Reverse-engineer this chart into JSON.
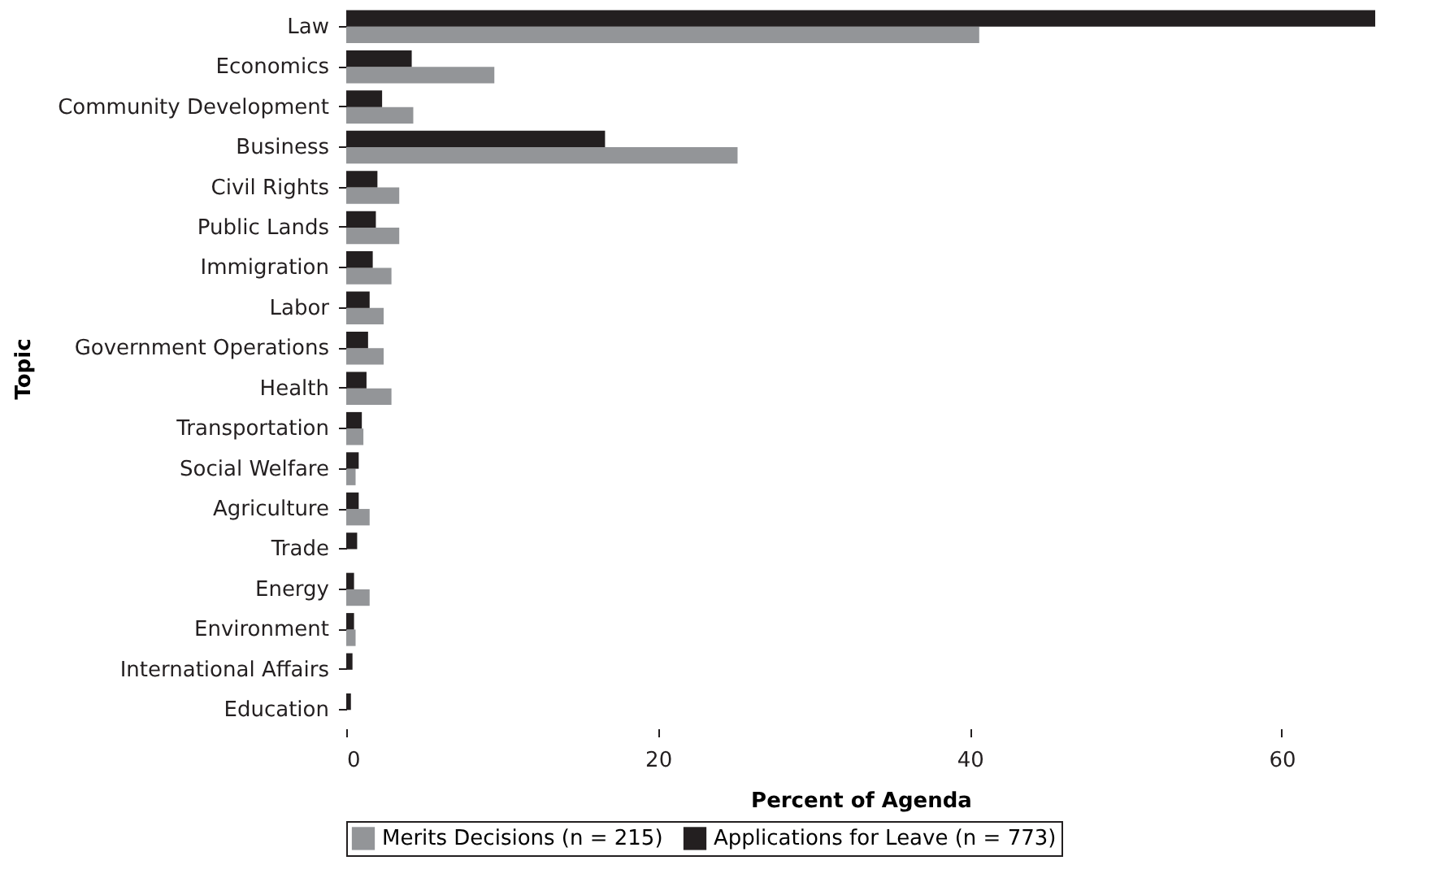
{
  "chart_data": {
    "type": "bar",
    "orientation": "horizontal",
    "xlabel": "Percent of Agenda",
    "ylabel": "Topic",
    "categories": [
      "Law",
      "Economics",
      "Community Development",
      "Business",
      "Civil Rights",
      "Public Lands",
      "Immigration",
      "Labor",
      "Government Operations",
      "Health",
      "Transportation",
      "Social Welfare",
      "Agriculture",
      "Trade",
      "Energy",
      "Environment",
      "International Affairs",
      "Education"
    ],
    "series": [
      {
        "name": "Merits Decisions (n = 215)",
        "color": "#939598",
        "values": [
          40.6,
          9.5,
          4.3,
          25.1,
          3.4,
          3.4,
          2.9,
          2.4,
          2.4,
          2.9,
          1.1,
          0.6,
          1.5,
          0,
          1.5,
          0.6,
          0,
          0
        ]
      },
      {
        "name": "Applications for Leave (n = 773)",
        "color": "#231f20",
        "values": [
          66,
          4.2,
          2.3,
          16.6,
          2.0,
          1.9,
          1.7,
          1.5,
          1.4,
          1.3,
          1.0,
          0.8,
          0.8,
          0.7,
          0.5,
          0.5,
          0.4,
          0.3
        ]
      }
    ],
    "xlim": [
      0,
      66
    ],
    "xticks": [
      0,
      20,
      40,
      60
    ],
    "grid": false,
    "legend": "bottom"
  }
}
